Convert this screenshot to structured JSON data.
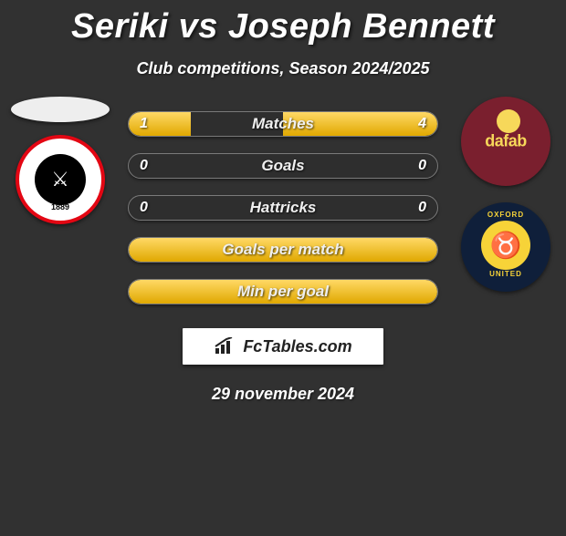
{
  "title": "Seriki vs Joseph Bennett",
  "subtitle": "Club competitions, Season 2024/2025",
  "date": "29 november 2024",
  "footer_brand": "FcTables.com",
  "colors": {
    "background": "#313131",
    "bar_fill_top": "#ffd966",
    "bar_fill_bottom": "#e0a800",
    "bar_border": "#7a7a7a",
    "text": "#ffffff",
    "sheffield_red": "#e30613",
    "sheffield_black": "#000000",
    "oxford_navy": "#0f1f3a",
    "oxford_yellow": "#f7d338",
    "dafabet_bg": "#7a1f2e",
    "dafabet_text": "#f7d85a"
  },
  "stats": [
    {
      "label": "Matches",
      "left_value": "1",
      "right_value": "4",
      "left_fill_pct": 20,
      "right_fill_pct": 50
    },
    {
      "label": "Goals",
      "left_value": "0",
      "right_value": "0",
      "left_fill_pct": 0,
      "right_fill_pct": 0
    },
    {
      "label": "Hattricks",
      "left_value": "0",
      "right_value": "0",
      "left_fill_pct": 0,
      "right_fill_pct": 0
    },
    {
      "label": "Goals per match",
      "left_value": "",
      "right_value": "",
      "left_fill_pct": 100,
      "right_fill_pct": 0,
      "full": true
    },
    {
      "label": "Min per goal",
      "left_value": "",
      "right_value": "",
      "left_fill_pct": 100,
      "right_fill_pct": 0,
      "full": true
    }
  ],
  "sheffield_year": "1889",
  "oxford_top": "OXFORD",
  "oxford_bottom": "UNITED",
  "dafabet_label": "dafab"
}
